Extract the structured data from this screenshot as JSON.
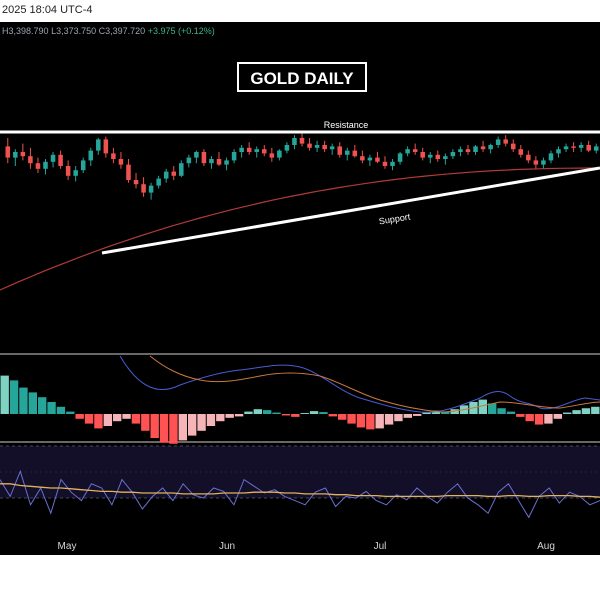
{
  "header": {
    "datetime": "2025 18:04 UTC-4"
  },
  "ohlc": {
    "h_label": "H",
    "h": "3,398.790",
    "l_label": "L",
    "l": "3,373.750",
    "c_label": "C",
    "c": "3,397.720",
    "change": "+3.975 (+0.12%)"
  },
  "colors": {
    "up": "#26a69a",
    "down": "#ef5350",
    "hist_up_strong": "#7ed3c2",
    "hist_up_weak": "#26a69a",
    "hist_down_strong": "#ff5252",
    "hist_down_weak": "#f5b5b8",
    "ma": "#b23a3a",
    "line_white": "#ffffff",
    "macd_line": "#4b5bd1",
    "signal_line": "#c9793f",
    "rsi_line": "#6a6fd4",
    "rsi_ma": "#e0b45a"
  },
  "chart_data": [
    {
      "type": "candlestick",
      "title": "GOLD DAILY",
      "annotations": [
        "Resistance",
        "Support"
      ],
      "x_tick_labels": [
        "May",
        "Jun",
        "Jul",
        "Aug"
      ],
      "candles": [
        {
          "o": 0.74,
          "h": 0.8,
          "l": 0.62,
          "c": 0.66
        },
        {
          "o": 0.66,
          "h": 0.72,
          "l": 0.6,
          "c": 0.7
        },
        {
          "o": 0.7,
          "h": 0.76,
          "l": 0.64,
          "c": 0.67
        },
        {
          "o": 0.67,
          "h": 0.73,
          "l": 0.58,
          "c": 0.62
        },
        {
          "o": 0.62,
          "h": 0.66,
          "l": 0.55,
          "c": 0.58
        },
        {
          "o": 0.58,
          "h": 0.65,
          "l": 0.54,
          "c": 0.63
        },
        {
          "o": 0.63,
          "h": 0.7,
          "l": 0.59,
          "c": 0.68
        },
        {
          "o": 0.68,
          "h": 0.71,
          "l": 0.58,
          "c": 0.6
        },
        {
          "o": 0.6,
          "h": 0.64,
          "l": 0.5,
          "c": 0.53
        },
        {
          "o": 0.53,
          "h": 0.6,
          "l": 0.49,
          "c": 0.57
        },
        {
          "o": 0.57,
          "h": 0.66,
          "l": 0.55,
          "c": 0.64
        },
        {
          "o": 0.64,
          "h": 0.73,
          "l": 0.6,
          "c": 0.71
        },
        {
          "o": 0.71,
          "h": 0.8,
          "l": 0.68,
          "c": 0.79
        },
        {
          "o": 0.79,
          "h": 0.81,
          "l": 0.66,
          "c": 0.69
        },
        {
          "o": 0.69,
          "h": 0.73,
          "l": 0.62,
          "c": 0.65
        },
        {
          "o": 0.65,
          "h": 0.7,
          "l": 0.58,
          "c": 0.61
        },
        {
          "o": 0.61,
          "h": 0.65,
          "l": 0.48,
          "c": 0.5
        },
        {
          "o": 0.5,
          "h": 0.55,
          "l": 0.44,
          "c": 0.47
        },
        {
          "o": 0.47,
          "h": 0.52,
          "l": 0.38,
          "c": 0.41
        },
        {
          "o": 0.41,
          "h": 0.48,
          "l": 0.36,
          "c": 0.46
        },
        {
          "o": 0.46,
          "h": 0.53,
          "l": 0.44,
          "c": 0.51
        },
        {
          "o": 0.51,
          "h": 0.58,
          "l": 0.48,
          "c": 0.56
        },
        {
          "o": 0.56,
          "h": 0.6,
          "l": 0.5,
          "c": 0.53
        },
        {
          "o": 0.53,
          "h": 0.64,
          "l": 0.52,
          "c": 0.62
        },
        {
          "o": 0.62,
          "h": 0.68,
          "l": 0.59,
          "c": 0.66
        },
        {
          "o": 0.66,
          "h": 0.71,
          "l": 0.62,
          "c": 0.7
        },
        {
          "o": 0.7,
          "h": 0.72,
          "l": 0.6,
          "c": 0.62
        },
        {
          "o": 0.62,
          "h": 0.67,
          "l": 0.58,
          "c": 0.65
        },
        {
          "o": 0.65,
          "h": 0.7,
          "l": 0.6,
          "c": 0.61
        },
        {
          "o": 0.61,
          "h": 0.66,
          "l": 0.57,
          "c": 0.64
        },
        {
          "o": 0.64,
          "h": 0.72,
          "l": 0.62,
          "c": 0.7
        },
        {
          "o": 0.7,
          "h": 0.75,
          "l": 0.66,
          "c": 0.73
        },
        {
          "o": 0.73,
          "h": 0.77,
          "l": 0.68,
          "c": 0.7
        },
        {
          "o": 0.7,
          "h": 0.74,
          "l": 0.66,
          "c": 0.72
        },
        {
          "o": 0.72,
          "h": 0.75,
          "l": 0.67,
          "c": 0.69
        },
        {
          "o": 0.69,
          "h": 0.73,
          "l": 0.63,
          "c": 0.66
        },
        {
          "o": 0.66,
          "h": 0.72,
          "l": 0.64,
          "c": 0.71
        },
        {
          "o": 0.71,
          "h": 0.77,
          "l": 0.69,
          "c": 0.75
        },
        {
          "o": 0.75,
          "h": 0.82,
          "l": 0.72,
          "c": 0.8
        },
        {
          "o": 0.8,
          "h": 0.84,
          "l": 0.74,
          "c": 0.76
        },
        {
          "o": 0.76,
          "h": 0.8,
          "l": 0.71,
          "c": 0.73
        },
        {
          "o": 0.73,
          "h": 0.78,
          "l": 0.7,
          "c": 0.75
        },
        {
          "o": 0.75,
          "h": 0.78,
          "l": 0.7,
          "c": 0.72
        },
        {
          "o": 0.72,
          "h": 0.76,
          "l": 0.68,
          "c": 0.74
        },
        {
          "o": 0.74,
          "h": 0.77,
          "l": 0.66,
          "c": 0.68
        },
        {
          "o": 0.68,
          "h": 0.73,
          "l": 0.64,
          "c": 0.71
        },
        {
          "o": 0.71,
          "h": 0.75,
          "l": 0.66,
          "c": 0.67
        },
        {
          "o": 0.67,
          "h": 0.71,
          "l": 0.62,
          "c": 0.64
        },
        {
          "o": 0.64,
          "h": 0.68,
          "l": 0.6,
          "c": 0.66
        },
        {
          "o": 0.66,
          "h": 0.7,
          "l": 0.62,
          "c": 0.63
        },
        {
          "o": 0.63,
          "h": 0.67,
          "l": 0.58,
          "c": 0.6
        },
        {
          "o": 0.6,
          "h": 0.65,
          "l": 0.57,
          "c": 0.63
        },
        {
          "o": 0.63,
          "h": 0.7,
          "l": 0.61,
          "c": 0.69
        },
        {
          "o": 0.69,
          "h": 0.74,
          "l": 0.67,
          "c": 0.72
        },
        {
          "o": 0.72,
          "h": 0.76,
          "l": 0.68,
          "c": 0.7
        },
        {
          "o": 0.7,
          "h": 0.73,
          "l": 0.64,
          "c": 0.66
        },
        {
          "o": 0.66,
          "h": 0.7,
          "l": 0.62,
          "c": 0.68
        },
        {
          "o": 0.68,
          "h": 0.71,
          "l": 0.63,
          "c": 0.65
        },
        {
          "o": 0.65,
          "h": 0.69,
          "l": 0.61,
          "c": 0.67
        },
        {
          "o": 0.67,
          "h": 0.72,
          "l": 0.65,
          "c": 0.7
        },
        {
          "o": 0.7,
          "h": 0.74,
          "l": 0.67,
          "c": 0.72
        },
        {
          "o": 0.72,
          "h": 0.75,
          "l": 0.68,
          "c": 0.7
        },
        {
          "o": 0.7,
          "h": 0.75,
          "l": 0.68,
          "c": 0.74
        },
        {
          "o": 0.74,
          "h": 0.78,
          "l": 0.7,
          "c": 0.72
        },
        {
          "o": 0.72,
          "h": 0.76,
          "l": 0.69,
          "c": 0.75
        },
        {
          "o": 0.75,
          "h": 0.81,
          "l": 0.73,
          "c": 0.79
        },
        {
          "o": 0.79,
          "h": 0.82,
          "l": 0.74,
          "c": 0.76
        },
        {
          "o": 0.76,
          "h": 0.79,
          "l": 0.7,
          "c": 0.72
        },
        {
          "o": 0.72,
          "h": 0.75,
          "l": 0.66,
          "c": 0.68
        },
        {
          "o": 0.68,
          "h": 0.71,
          "l": 0.62,
          "c": 0.64
        },
        {
          "o": 0.64,
          "h": 0.67,
          "l": 0.58,
          "c": 0.61
        },
        {
          "o": 0.61,
          "h": 0.66,
          "l": 0.58,
          "c": 0.64
        },
        {
          "o": 0.64,
          "h": 0.71,
          "l": 0.62,
          "c": 0.69
        },
        {
          "o": 0.69,
          "h": 0.74,
          "l": 0.66,
          "c": 0.72
        },
        {
          "o": 0.72,
          "h": 0.76,
          "l": 0.7,
          "c": 0.74
        },
        {
          "o": 0.74,
          "h": 0.77,
          "l": 0.7,
          "c": 0.73
        },
        {
          "o": 0.73,
          "h": 0.77,
          "l": 0.7,
          "c": 0.75
        },
        {
          "o": 0.75,
          "h": 0.78,
          "l": 0.7,
          "c": 0.71
        },
        {
          "o": 0.71,
          "h": 0.76,
          "l": 0.69,
          "c": 0.74
        }
      ]
    },
    {
      "type": "bar",
      "title": "",
      "series": [
        {
          "values": [
            0.8,
            0.7,
            0.55,
            0.45,
            0.35,
            0.25,
            0.15,
            0.05,
            -0.1,
            -0.2,
            -0.3,
            -0.25,
            -0.15,
            -0.1,
            -0.2,
            -0.35,
            -0.5,
            -0.6,
            -0.62,
            -0.55,
            -0.45,
            -0.35,
            -0.25,
            -0.15,
            -0.08,
            -0.05,
            0.05,
            0.1,
            0.08,
            0.03,
            -0.03,
            -0.06,
            0.02,
            0.06,
            0.04,
            -0.05,
            -0.12,
            -0.2,
            -0.28,
            -0.32,
            -0.3,
            -0.22,
            -0.15,
            -0.08,
            -0.04,
            0.03,
            0.07,
            0.05,
            0.1,
            0.18,
            0.25,
            0.3,
            0.22,
            0.12,
            0.05,
            -0.06,
            -0.15,
            -0.22,
            -0.2,
            -0.1,
            0.03,
            0.08,
            0.12,
            0.15
          ]
        }
      ]
    },
    {
      "type": "line",
      "title": "",
      "series": [
        {
          "values": [
            0.6,
            0.4,
            0.7,
            0.3,
            0.5,
            0.2,
            0.6,
            0.45,
            0.35,
            0.55,
            0.5,
            0.3,
            0.6,
            0.45,
            0.25,
            0.4,
            0.5,
            0.35,
            0.55,
            0.42,
            0.38,
            0.5,
            0.46,
            0.3,
            0.6,
            0.52,
            0.44,
            0.48,
            0.4,
            0.35,
            0.3,
            0.45,
            0.5,
            0.28,
            0.4,
            0.38,
            0.46,
            0.35,
            0.3,
            0.42,
            0.36,
            0.5,
            0.4,
            0.32,
            0.45,
            0.55,
            0.38,
            0.3,
            0.2,
            0.45,
            0.55,
            0.35,
            0.15,
            0.4,
            0.5,
            0.32,
            0.45,
            0.4,
            0.3,
            0.35
          ]
        },
        {
          "values": [
            0.55,
            0.55,
            0.53,
            0.52,
            0.51,
            0.5,
            0.5,
            0.49,
            0.48,
            0.47,
            0.46,
            0.46,
            0.45,
            0.45,
            0.44,
            0.44,
            0.44,
            0.44,
            0.43,
            0.43,
            0.43,
            0.43,
            0.44,
            0.44,
            0.44,
            0.45,
            0.45,
            0.45,
            0.44,
            0.44,
            0.43,
            0.43,
            0.43,
            0.42,
            0.42,
            0.41,
            0.41,
            0.41,
            0.4,
            0.4,
            0.4,
            0.4,
            0.4,
            0.4,
            0.41,
            0.41,
            0.41,
            0.41,
            0.4,
            0.4,
            0.41,
            0.41,
            0.4,
            0.4,
            0.41,
            0.41,
            0.41,
            0.4,
            0.4,
            0.39
          ]
        }
      ]
    }
  ]
}
